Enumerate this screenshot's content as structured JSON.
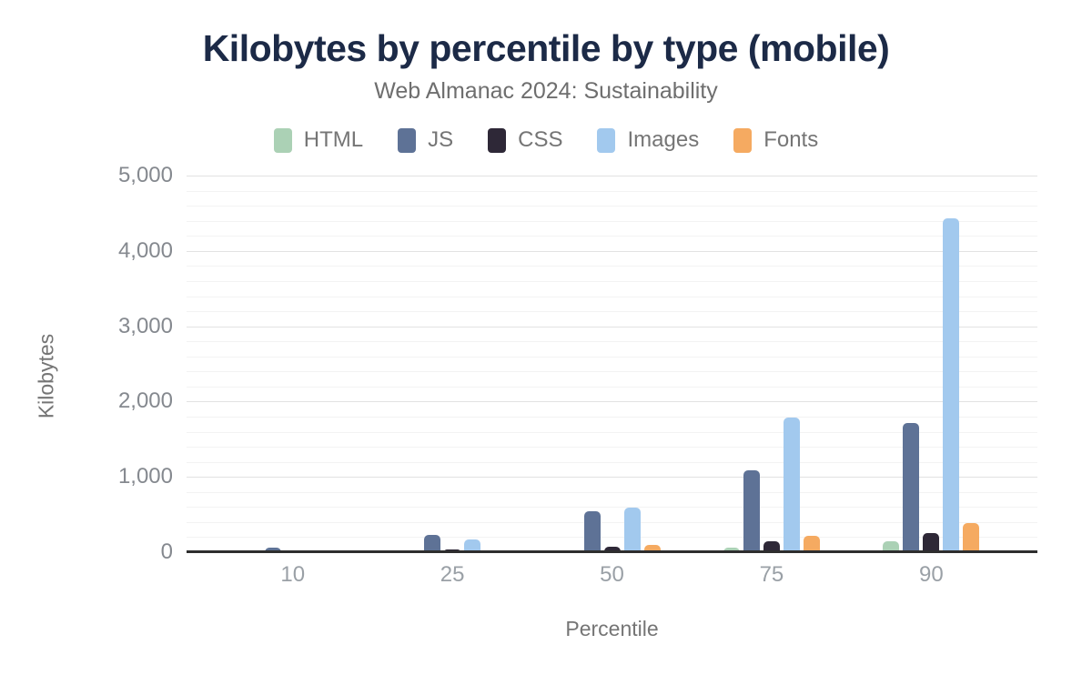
{
  "header": {
    "title": "Kilobytes by percentile by type (mobile)",
    "subtitle": "Web Almanac 2024: Sustainability"
  },
  "axes": {
    "y_title": "Kilobytes",
    "x_title": "Percentile"
  },
  "colors": {
    "title_text": "#1c2a47",
    "subtitle_text": "#6e6e6e",
    "tick_text": "#9aa0a6",
    "axis_line": "#2e2e2e",
    "background": "#ffffff"
  },
  "chart_data": {
    "type": "bar",
    "title": "Kilobytes by percentile by type (mobile)",
    "subtitle": "Web Almanac 2024: Sustainability",
    "xlabel": "Percentile",
    "ylabel": "Kilobytes",
    "categories": [
      "10",
      "25",
      "50",
      "75",
      "90"
    ],
    "series": [
      {
        "name": "HTML",
        "color": "#abd1b5",
        "pattern": "solid",
        "values": [
          6,
          13,
          30,
          55,
          140
        ]
      },
      {
        "name": "JS",
        "color": "#5e7296",
        "pattern": "solid",
        "values": [
          67,
          236,
          545,
          1085,
          1710
        ]
      },
      {
        "name": "CSS",
        "color": "#2e2837",
        "pattern": "dots",
        "values": [
          10,
          33,
          76,
          148,
          250
        ]
      },
      {
        "name": "Images",
        "color": "#a2c9ee",
        "pattern": "solid",
        "values": [
          27,
          168,
          590,
          1790,
          4435
        ]
      },
      {
        "name": "Fonts",
        "color": "#f5aa61",
        "pattern": "solid",
        "values": [
          0,
          25,
          96,
          215,
          385
        ]
      }
    ],
    "ylim": [
      0,
      5000
    ],
    "ytick_step": 1000,
    "minor_gridline_step": 200,
    "ytick_labels": [
      "0",
      "1,000",
      "2,000",
      "3,000",
      "4,000",
      "5,000"
    ],
    "grid": "on",
    "legend_position": "top"
  }
}
